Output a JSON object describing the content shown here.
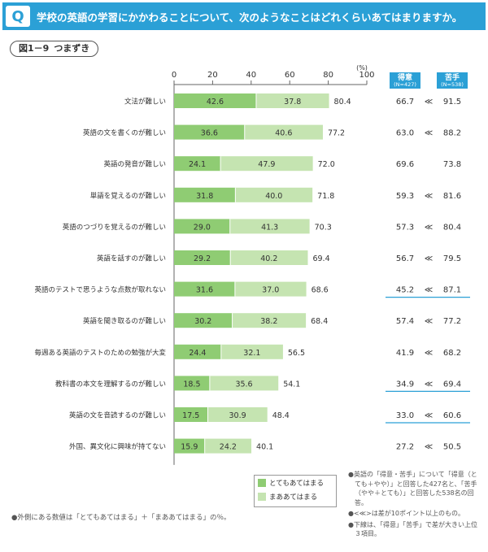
{
  "header": {
    "badge": "Q",
    "question": "学校の英語の学習にかかわることについて、次のようなことはどれくらいあてはまりますか。"
  },
  "figure": {
    "number": "図1－9",
    "name": "つまずき"
  },
  "chart_data": {
    "type": "bar",
    "stacked": true,
    "unit_label": "(%)",
    "xlim": [
      0,
      100
    ],
    "ticks": [
      "0",
      "20",
      "40",
      "60",
      "80",
      "100"
    ],
    "categories": [
      "文法が難しい",
      "英語の文を書くのが難しい",
      "英語の発音が難しい",
      "単語を覚えるのが難しい",
      "英語のつづりを覚えるのが難しい",
      "英語を話すのが難しい",
      "英語のテストで思うような点数が取れない",
      "英語を聞き取るのが難しい",
      "毎週ある英語のテストのための勉強が大変",
      "教科書の本文を理解するのが難しい",
      "英語の文を音読するのが難しい",
      "外国、異文化に興味が持てない"
    ],
    "series": [
      {
        "name": "とてもあてはまる",
        "color": "#8fcc73",
        "values": [
          "42.6",
          "36.6",
          "24.1",
          "31.8",
          "29.0",
          "29.2",
          "31.6",
          "30.2",
          "24.4",
          "18.5",
          "17.5",
          "15.9"
        ]
      },
      {
        "name": "まああてはまる",
        "color": "#c5e4b1",
        "values": [
          "37.8",
          "40.6",
          "47.9",
          "40.0",
          "41.3",
          "40.2",
          "37.0",
          "38.2",
          "32.1",
          "35.6",
          "30.9",
          "24.2"
        ]
      }
    ],
    "totals": [
      "80.4",
      "77.2",
      "72.0",
      "71.8",
      "70.3",
      "69.4",
      "68.6",
      "68.4",
      "56.5",
      "54.1",
      "48.4",
      "40.1"
    ],
    "comparison": {
      "good_label": "得意",
      "good_n": "(N=427)",
      "bad_label": "苦手",
      "bad_n": "(N=538)",
      "symbol": "≪",
      "good": [
        "66.7",
        "63.0",
        "69.6",
        "59.3",
        "57.3",
        "56.7",
        "45.2",
        "57.4",
        "41.9",
        "34.9",
        "33.0",
        "27.2"
      ],
      "bad": [
        "91.5",
        "88.2",
        "73.8",
        "81.6",
        "80.4",
        "79.5",
        "87.1",
        "77.2",
        "68.2",
        "69.4",
        "60.6",
        "50.5"
      ],
      "diff_flag": [
        true,
        true,
        false,
        true,
        true,
        true,
        true,
        true,
        true,
        true,
        true,
        true
      ],
      "top3": [
        false,
        false,
        false,
        false,
        false,
        false,
        true,
        false,
        false,
        true,
        true,
        false
      ]
    }
  },
  "legend": {
    "item1": "とてもあてはまる",
    "item2": "まああてはまる",
    "color1": "#8fcc73",
    "color2": "#c5e4b1"
  },
  "notes": {
    "right1": "●英語の「得意・苦手」について「得意（とても＋やや）」と回答した427名と、「苦手（やや＋とても）」と回答した538名の回答。",
    "right2": "●<≪>は差が10ポイント以上のもの。",
    "right3": "●下線は、「得意」「苦手」で差が大きい上位３項目。",
    "left": "●外側にある数値は「とてもあてはまる」＋「まああてはまる」の％。"
  }
}
